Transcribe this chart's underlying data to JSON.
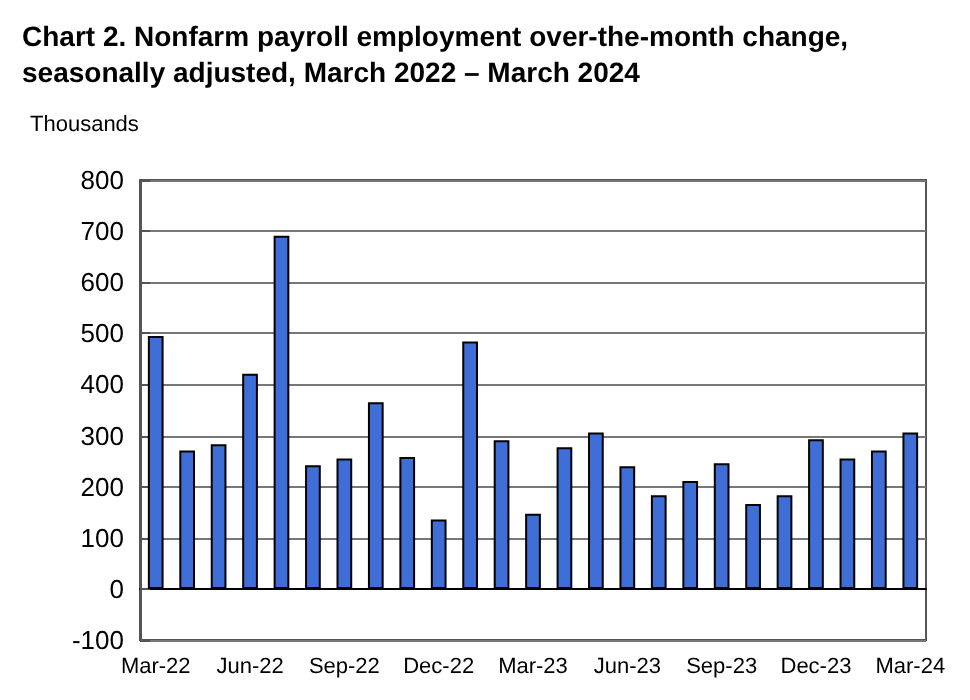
{
  "chart_data": {
    "type": "bar",
    "title": "Chart 2. Nonfarm payroll employment over-the-month change,\nseasonally adjusted, March 2022 – March 2024",
    "ylabel": "Thousands",
    "categories": [
      "Mar-22",
      null,
      null,
      "Jun-22",
      null,
      null,
      "Sep-22",
      null,
      null,
      "Dec-22",
      null,
      null,
      "Mar-23",
      null,
      null,
      "Jun-23",
      null,
      null,
      "Sep-23",
      null,
      null,
      "Dec-23",
      null,
      null,
      "Mar-24"
    ],
    "values": [
      495,
      271,
      283,
      421,
      691,
      242,
      255,
      365,
      258,
      136,
      484,
      291,
      147,
      277,
      306,
      240,
      183,
      211,
      246,
      166,
      183,
      293,
      255,
      271,
      306
    ],
    "color": "#3f6fd6",
    "ylim": [
      -100,
      800
    ],
    "yticks": [
      -100,
      0,
      100,
      200,
      300,
      400,
      500,
      600,
      700,
      800
    ],
    "grid": "y"
  }
}
